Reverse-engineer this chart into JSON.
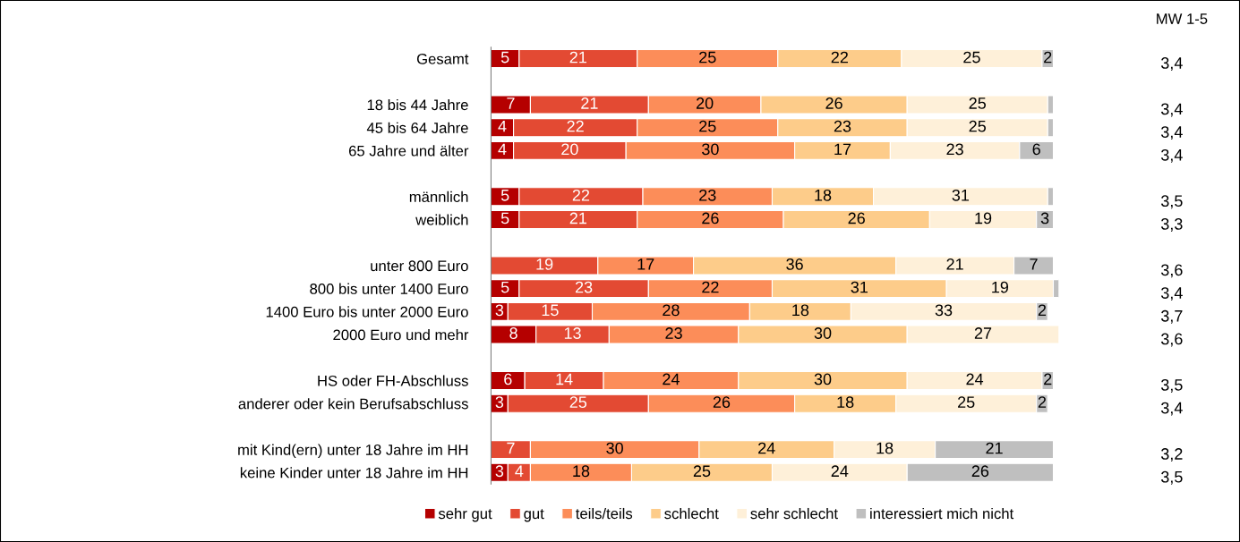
{
  "chart_data": {
    "type": "bar",
    "orientation": "horizontal",
    "stacked": true,
    "legend": "bottom",
    "grid": false,
    "categories": [
      "Gesamt",
      null,
      "18 bis 44 Jahre",
      "45 bis 64 Jahre",
      "65 Jahre und älter",
      null,
      "männlich",
      "weiblich",
      null,
      "unter 800 Euro",
      "800 bis unter 1400 Euro",
      "1400 Euro bis unter 2000 Euro",
      "2000 Euro und mehr",
      null,
      "HS oder FH-Abschluss",
      "anderer oder kein Berufsabschluss",
      null,
      "mit Kind(ern) unter 18 Jahre im HH",
      "keine Kinder unter 18 Jahre im HH"
    ],
    "series": [
      {
        "name": "sehr gut",
        "color": "#b50000",
        "values": [
          5,
          null,
          7,
          4,
          4,
          null,
          5,
          5,
          null,
          null,
          5,
          3,
          8,
          null,
          6,
          3,
          null,
          null,
          3
        ],
        "value_labels": [
          "5",
          null,
          "7",
          "4",
          "4",
          null,
          "5",
          "5",
          null,
          null,
          "5",
          "3",
          "8",
          null,
          "6",
          "3",
          null,
          null,
          "3"
        ]
      },
      {
        "name": "gut",
        "color": "#e34a33",
        "values": [
          21,
          null,
          21,
          22,
          20,
          null,
          22,
          21,
          null,
          19,
          23,
          15,
          13,
          null,
          14,
          25,
          null,
          7,
          4
        ],
        "value_labels": [
          "21",
          null,
          "21",
          "22",
          "20",
          null,
          "22",
          "21",
          null,
          "19",
          "23",
          "15",
          "13",
          null,
          "14",
          "25",
          null,
          "7",
          "4"
        ]
      },
      {
        "name": "teils/teils",
        "color": "#fc8d59",
        "values": [
          25,
          null,
          20,
          25,
          30,
          null,
          23,
          26,
          null,
          17,
          22,
          28,
          23,
          null,
          24,
          26,
          null,
          30,
          18
        ],
        "value_labels": [
          "25",
          null,
          "20",
          "25",
          "30",
          null,
          "23",
          "26",
          null,
          "17",
          "22",
          "28",
          "23",
          null,
          "24",
          "26",
          null,
          "30",
          "18"
        ]
      },
      {
        "name": "schlecht",
        "color": "#fdcc8a",
        "values": [
          22,
          null,
          26,
          23,
          17,
          null,
          18,
          26,
          null,
          36,
          31,
          18,
          30,
          null,
          30,
          18,
          null,
          24,
          25
        ],
        "value_labels": [
          "22",
          null,
          "26",
          "23",
          "17",
          null,
          "18",
          "26",
          null,
          "36",
          "31",
          "18",
          "30",
          null,
          "30",
          "18",
          null,
          "24",
          "25"
        ]
      },
      {
        "name": "sehr schlecht",
        "color": "#fef0d9",
        "values": [
          25,
          null,
          25,
          25,
          23,
          null,
          31,
          19,
          null,
          21,
          19,
          33,
          27,
          null,
          24,
          25,
          null,
          18,
          24
        ],
        "value_labels": [
          "25",
          null,
          "25",
          "25",
          "23",
          null,
          "31",
          "19",
          null,
          "21",
          "19",
          "33",
          "27",
          null,
          "24",
          "25",
          null,
          "18",
          "24"
        ]
      },
      {
        "name": "interessiert mich nicht",
        "color": "#bfbfbf",
        "values": [
          2,
          null,
          1,
          1,
          6,
          null,
          1,
          3,
          null,
          7,
          1,
          2,
          null,
          null,
          2,
          2,
          null,
          21,
          26
        ],
        "value_labels": [
          "2",
          null,
          null,
          null,
          "6",
          null,
          null,
          "3",
          null,
          "7",
          null,
          "2",
          null,
          null,
          "2",
          "2",
          null,
          "21",
          "26"
        ]
      }
    ],
    "annotations": [
      "MW 1-5",
      "3,4",
      "3,4",
      "3,4",
      "3,4",
      "3,5",
      "3,3",
      "3,6",
      "3,4",
      "3,7",
      "3,6",
      "3,5",
      "3,4",
      "3,2",
      "3,5"
    ]
  }
}
